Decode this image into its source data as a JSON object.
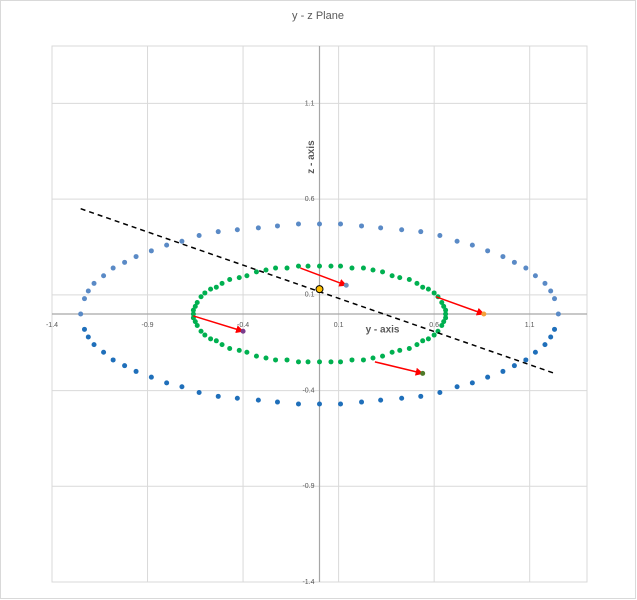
{
  "chart_data": {
    "type": "scatter",
    "title": "y - z Plane",
    "x_label": "y - axis",
    "y_label": "z - axis",
    "xlim": [
      -1.4,
      1.4
    ],
    "ylim": [
      -1.4,
      1.4
    ],
    "xticks": [
      -1.4,
      -0.9,
      -0.4,
      0.1,
      0.6,
      1.1
    ],
    "yticks": [
      -1.4,
      -0.9,
      -0.4,
      0.1,
      0.6,
      1.1
    ],
    "grid": true,
    "series": [
      {
        "mode": "markers",
        "color": "#5a8ac6",
        "x": [
          -1.25,
          -1.23,
          -1.21,
          -1.18,
          -1.13,
          -1.08,
          -1.02,
          -0.96,
          -0.88,
          -0.8,
          -0.72,
          -0.63,
          -0.53,
          -0.43,
          -0.32,
          -0.22,
          -0.11,
          0,
          0.11,
          0.22,
          0.32,
          0.43,
          0.53,
          0.63,
          0.72,
          0.8,
          0.88,
          0.96,
          1.02,
          1.08,
          1.13,
          1.18,
          1.21,
          1.23,
          1.25
        ],
        "y": [
          0,
          0.08,
          0.12,
          0.16,
          0.2,
          0.24,
          0.27,
          0.3,
          0.33,
          0.36,
          0.38,
          0.41,
          0.43,
          0.44,
          0.45,
          0.46,
          0.47,
          0.47,
          0.47,
          0.46,
          0.45,
          0.44,
          0.43,
          0.41,
          0.38,
          0.36,
          0.33,
          0.3,
          0.27,
          0.24,
          0.2,
          0.16,
          0.12,
          0.08,
          0
        ]
      },
      {
        "mode": "markers",
        "color": "#1f6fba",
        "x": [
          -1.23,
          -1.21,
          -1.18,
          -1.13,
          -1.08,
          -1.02,
          -0.96,
          -0.88,
          -0.8,
          -0.72,
          -0.63,
          -0.53,
          -0.43,
          -0.32,
          -0.22,
          -0.11,
          0,
          0.11,
          0.22,
          0.32,
          0.43,
          0.53,
          0.63,
          0.72,
          0.8,
          0.88,
          0.96,
          1.02,
          1.08,
          1.13,
          1.18,
          1.21,
          1.23
        ],
        "y": [
          -0.08,
          -0.12,
          -0.16,
          -0.2,
          -0.24,
          -0.27,
          -0.3,
          -0.33,
          -0.36,
          -0.38,
          -0.41,
          -0.43,
          -0.44,
          -0.45,
          -0.46,
          -0.47,
          -0.47,
          -0.47,
          -0.46,
          -0.45,
          -0.44,
          -0.43,
          -0.41,
          -0.38,
          -0.36,
          -0.33,
          -0.3,
          -0.27,
          -0.24,
          -0.2,
          -0.16,
          -0.12,
          -0.08
        ]
      },
      {
        "mode": "markers",
        "color": "#00b050",
        "x": [
          0.66,
          0.66,
          0.65,
          0.64,
          0.62,
          0.6,
          0.57,
          0.54,
          0.51,
          0.47,
          0.42,
          0.38,
          0.33,
          0.28,
          0.23,
          0.17,
          0.11,
          0.06,
          0,
          -0.06,
          -0.11,
          -0.17,
          -0.23,
          -0.28,
          -0.33,
          -0.38,
          -0.42,
          -0.47,
          -0.51,
          -0.54,
          -0.57,
          -0.6,
          -0.62,
          -0.64,
          -0.65,
          -0.66,
          -0.66
        ],
        "y": [
          0,
          0.02,
          0.04,
          0.06,
          0.09,
          0.11,
          0.13,
          0.14,
          0.16,
          0.18,
          0.19,
          0.2,
          0.22,
          0.23,
          0.24,
          0.24,
          0.25,
          0.25,
          0.25,
          0.25,
          0.25,
          0.24,
          0.24,
          0.23,
          0.22,
          0.2,
          0.19,
          0.18,
          0.16,
          0.14,
          0.13,
          0.11,
          0.09,
          0.06,
          0.04,
          0.02,
          0
        ]
      },
      {
        "mode": "markers",
        "color": "#00b050",
        "x": [
          -0.66,
          -0.65,
          -0.64,
          -0.62,
          -0.6,
          -0.57,
          -0.54,
          -0.51,
          -0.47,
          -0.42,
          -0.38,
          -0.33,
          -0.28,
          -0.23,
          -0.17,
          -0.11,
          -0.06,
          0,
          0.06,
          0.11,
          0.17,
          0.23,
          0.28,
          0.33,
          0.38,
          0.42,
          0.47,
          0.51,
          0.54,
          0.57,
          0.6,
          0.62,
          0.64,
          0.65,
          0.66
        ],
        "y": [
          -0.02,
          -0.04,
          -0.06,
          -0.09,
          -0.11,
          -0.13,
          -0.14,
          -0.16,
          -0.18,
          -0.19,
          -0.2,
          -0.22,
          -0.23,
          -0.24,
          -0.24,
          -0.25,
          -0.25,
          -0.25,
          -0.25,
          -0.25,
          -0.24,
          -0.24,
          -0.23,
          -0.22,
          -0.2,
          -0.19,
          -0.18,
          -0.16,
          -0.14,
          -0.13,
          -0.11,
          -0.09,
          -0.06,
          -0.04,
          -0.02
        ]
      },
      {
        "mode": "line",
        "color": "#000000",
        "dash": true,
        "x": [
          -1.25,
          1.23
        ],
        "y": [
          0.55,
          -0.31
        ]
      },
      {
        "mode": "markers",
        "color": "#ffc000",
        "stroke": "#000000",
        "x": [
          0
        ],
        "y": [
          0.13
        ]
      }
    ],
    "arrows": [
      {
        "color": "#ff0000",
        "marker_color": "#6f8fb8",
        "x": [
          -0.1,
          0.14
        ],
        "y": [
          0.24,
          0.15
        ]
      },
      {
        "color": "#ff0000",
        "marker_color": "#f4a13a",
        "x": [
          0.61,
          0.86
        ],
        "y": [
          0.09,
          0
        ]
      },
      {
        "color": "#ff0000",
        "marker_color": "#7a3c8c",
        "x": [
          -0.66,
          -0.4
        ],
        "y": [
          -0.01,
          -0.09
        ]
      },
      {
        "color": "#ff0000",
        "marker_color": "#4f7a28",
        "x": [
          0.29,
          0.54
        ],
        "y": [
          -0.25,
          -0.31
        ]
      }
    ]
  }
}
